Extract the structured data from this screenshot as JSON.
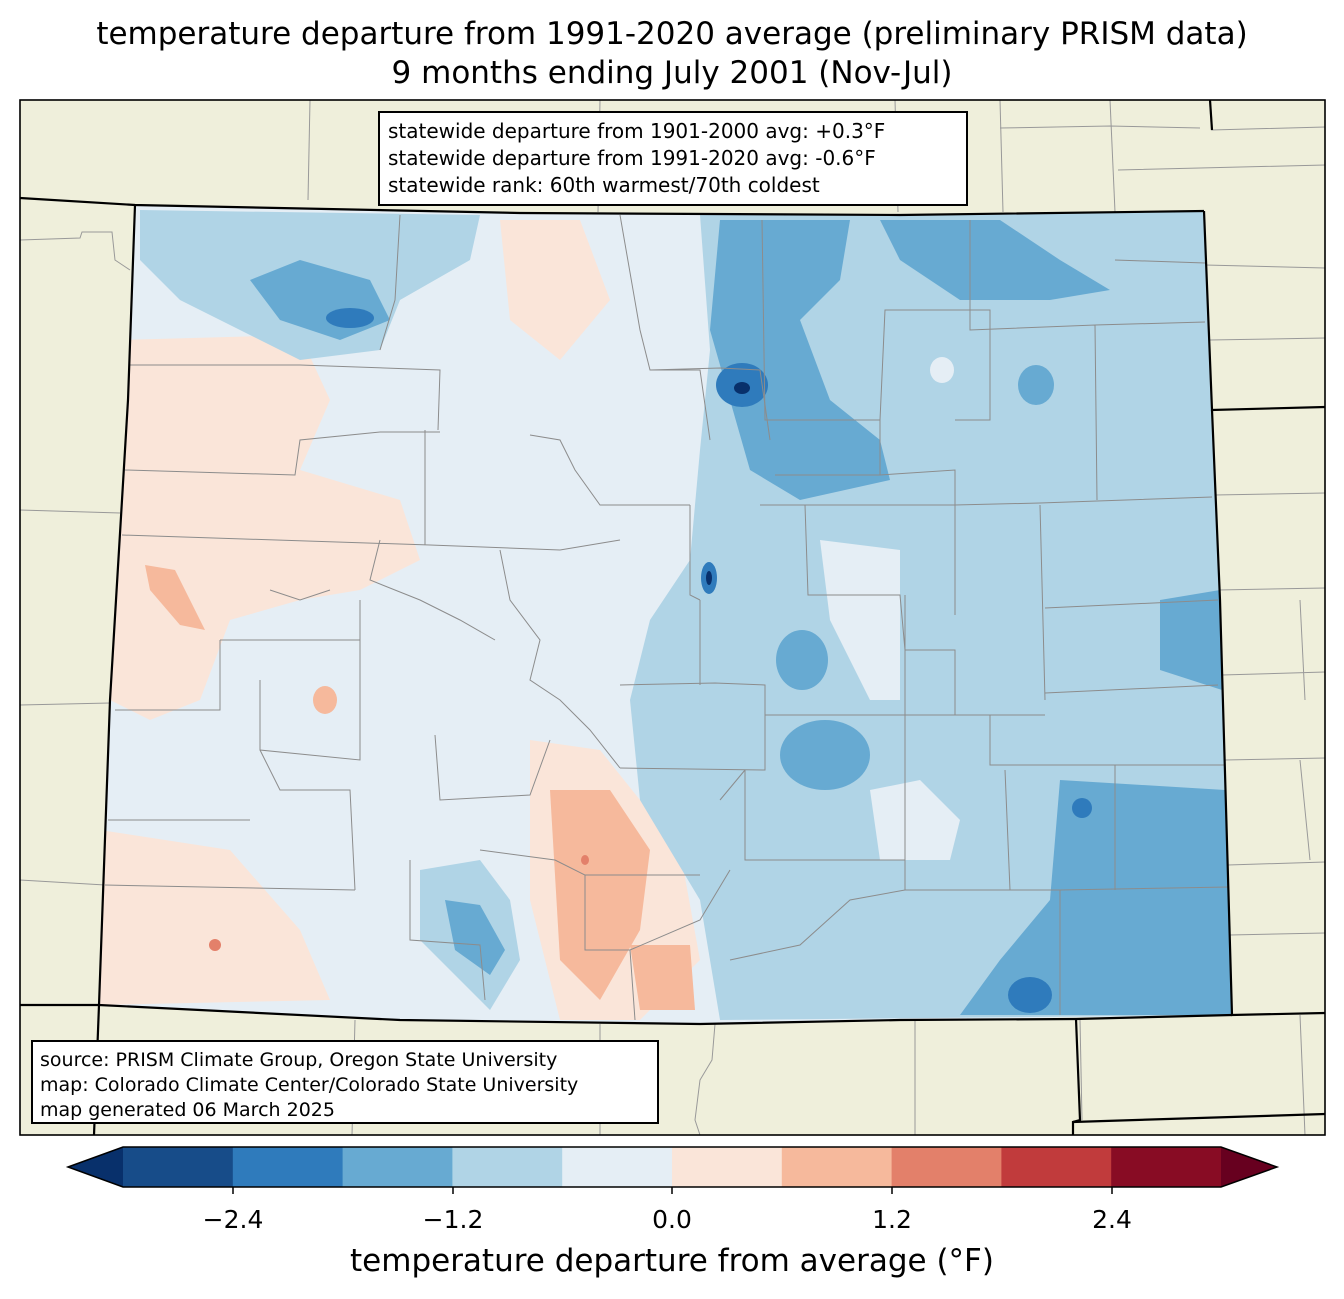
{
  "title": {
    "line1": "temperature departure from 1991-2020 average (preliminary PRISM data)",
    "line2": "9 months ending July 2001 (Nov-Jul)"
  },
  "stats": {
    "line1": "statewide departure from 1901-2000 avg: +0.3°F",
    "line2": "statewide departure from 1991-2020 avg: -0.6°F",
    "line3": "statewide rank: 60th warmest/70th coldest"
  },
  "source": {
    "line1": "source: PRISM Climate Group, Oregon State University",
    "line2": "map: Colorado Climate Center/Colorado State University",
    "line3": "map generated 06 March 2025"
  },
  "colorbar": {
    "label": "temperature departure from average (°F)",
    "ticks": [
      "−2.4",
      "−1.2",
      "0.0",
      "1.2",
      "2.4"
    ],
    "colors": [
      "#08306b",
      "#174c89",
      "#2f7bbc",
      "#67aad2",
      "#b0d4e6",
      "#e5eef5",
      "#fae5d9",
      "#f6b99c",
      "#e3806a",
      "#c13b3c",
      "#880c24",
      "#67001f"
    ],
    "background_land": "#efefdb"
  }
}
